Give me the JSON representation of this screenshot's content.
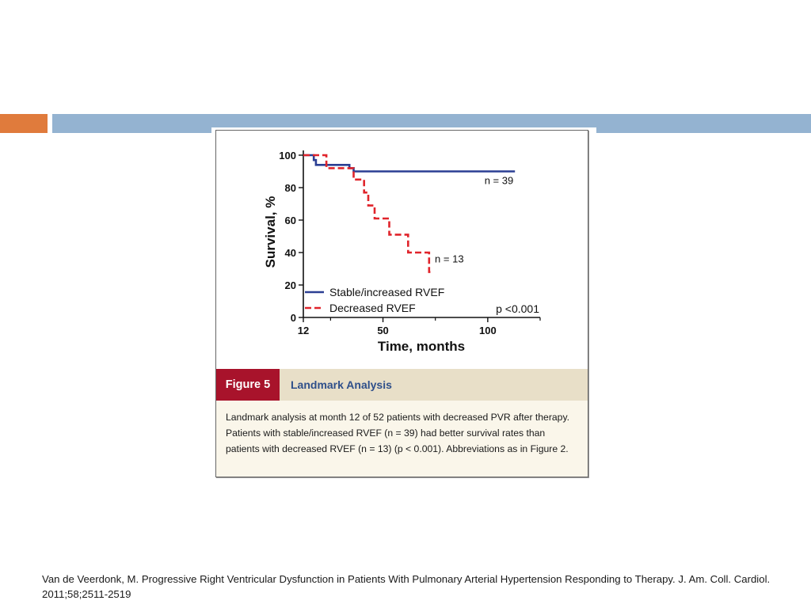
{
  "slide": {
    "accent_colors": {
      "orange": "#e07b3c",
      "blue": "#94b3d1"
    },
    "citation": "Van de Veerdonk, M. Progressive Right Ventricular Dysfunction in Patients With Pulmonary Arterial Hypertension Responding to Therapy. J. Am. Coll. Cardiol. 2011;58;2511-2519"
  },
  "figure": {
    "label": "Figure 5",
    "title": "Landmark Analysis",
    "caption": "Landmark analysis at month 12 of 52 patients with decreased PVR after therapy. Patients with stable/increased RVEF (n = 39) had better survival rates than patients with decreased RVEF (n = 13) (p < 0.001). Abbreviations as in Figure 2."
  },
  "chart_data": {
    "type": "line",
    "title": "",
    "xlabel": "Time, months",
    "ylabel": "Survival, %",
    "xlim": [
      12,
      125
    ],
    "ylim": [
      0,
      100
    ],
    "x_ticks": [
      12,
      50,
      100
    ],
    "y_ticks": [
      0,
      20,
      40,
      60,
      80,
      100
    ],
    "series": [
      {
        "name": "Stable/increased RVEF",
        "color": "#2b3f93",
        "dash": "solid",
        "end_label": "n = 39",
        "steps": [
          [
            12,
            100
          ],
          [
            17,
            100
          ],
          [
            17,
            97
          ],
          [
            18,
            97
          ],
          [
            18,
            94
          ],
          [
            34,
            94
          ],
          [
            34,
            92
          ],
          [
            36,
            92
          ],
          [
            36,
            90
          ],
          [
            113,
            90
          ]
        ]
      },
      {
        "name": "Decreased RVEF",
        "color": "#e0242b",
        "dash": "dashed",
        "end_label": "n = 13",
        "steps": [
          [
            12,
            100
          ],
          [
            23,
            100
          ],
          [
            23,
            92
          ],
          [
            36,
            92
          ],
          [
            36,
            85
          ],
          [
            41,
            85
          ],
          [
            41,
            77
          ],
          [
            43,
            77
          ],
          [
            43,
            69
          ],
          [
            46,
            69
          ],
          [
            46,
            61
          ],
          [
            53,
            61
          ],
          [
            53,
            51
          ],
          [
            62,
            51
          ],
          [
            62,
            40
          ],
          [
            72,
            40
          ],
          [
            72,
            28
          ],
          [
            74,
            28
          ]
        ]
      }
    ],
    "annotation": "p <0.001",
    "legend": "bottom-left",
    "grid": false
  }
}
